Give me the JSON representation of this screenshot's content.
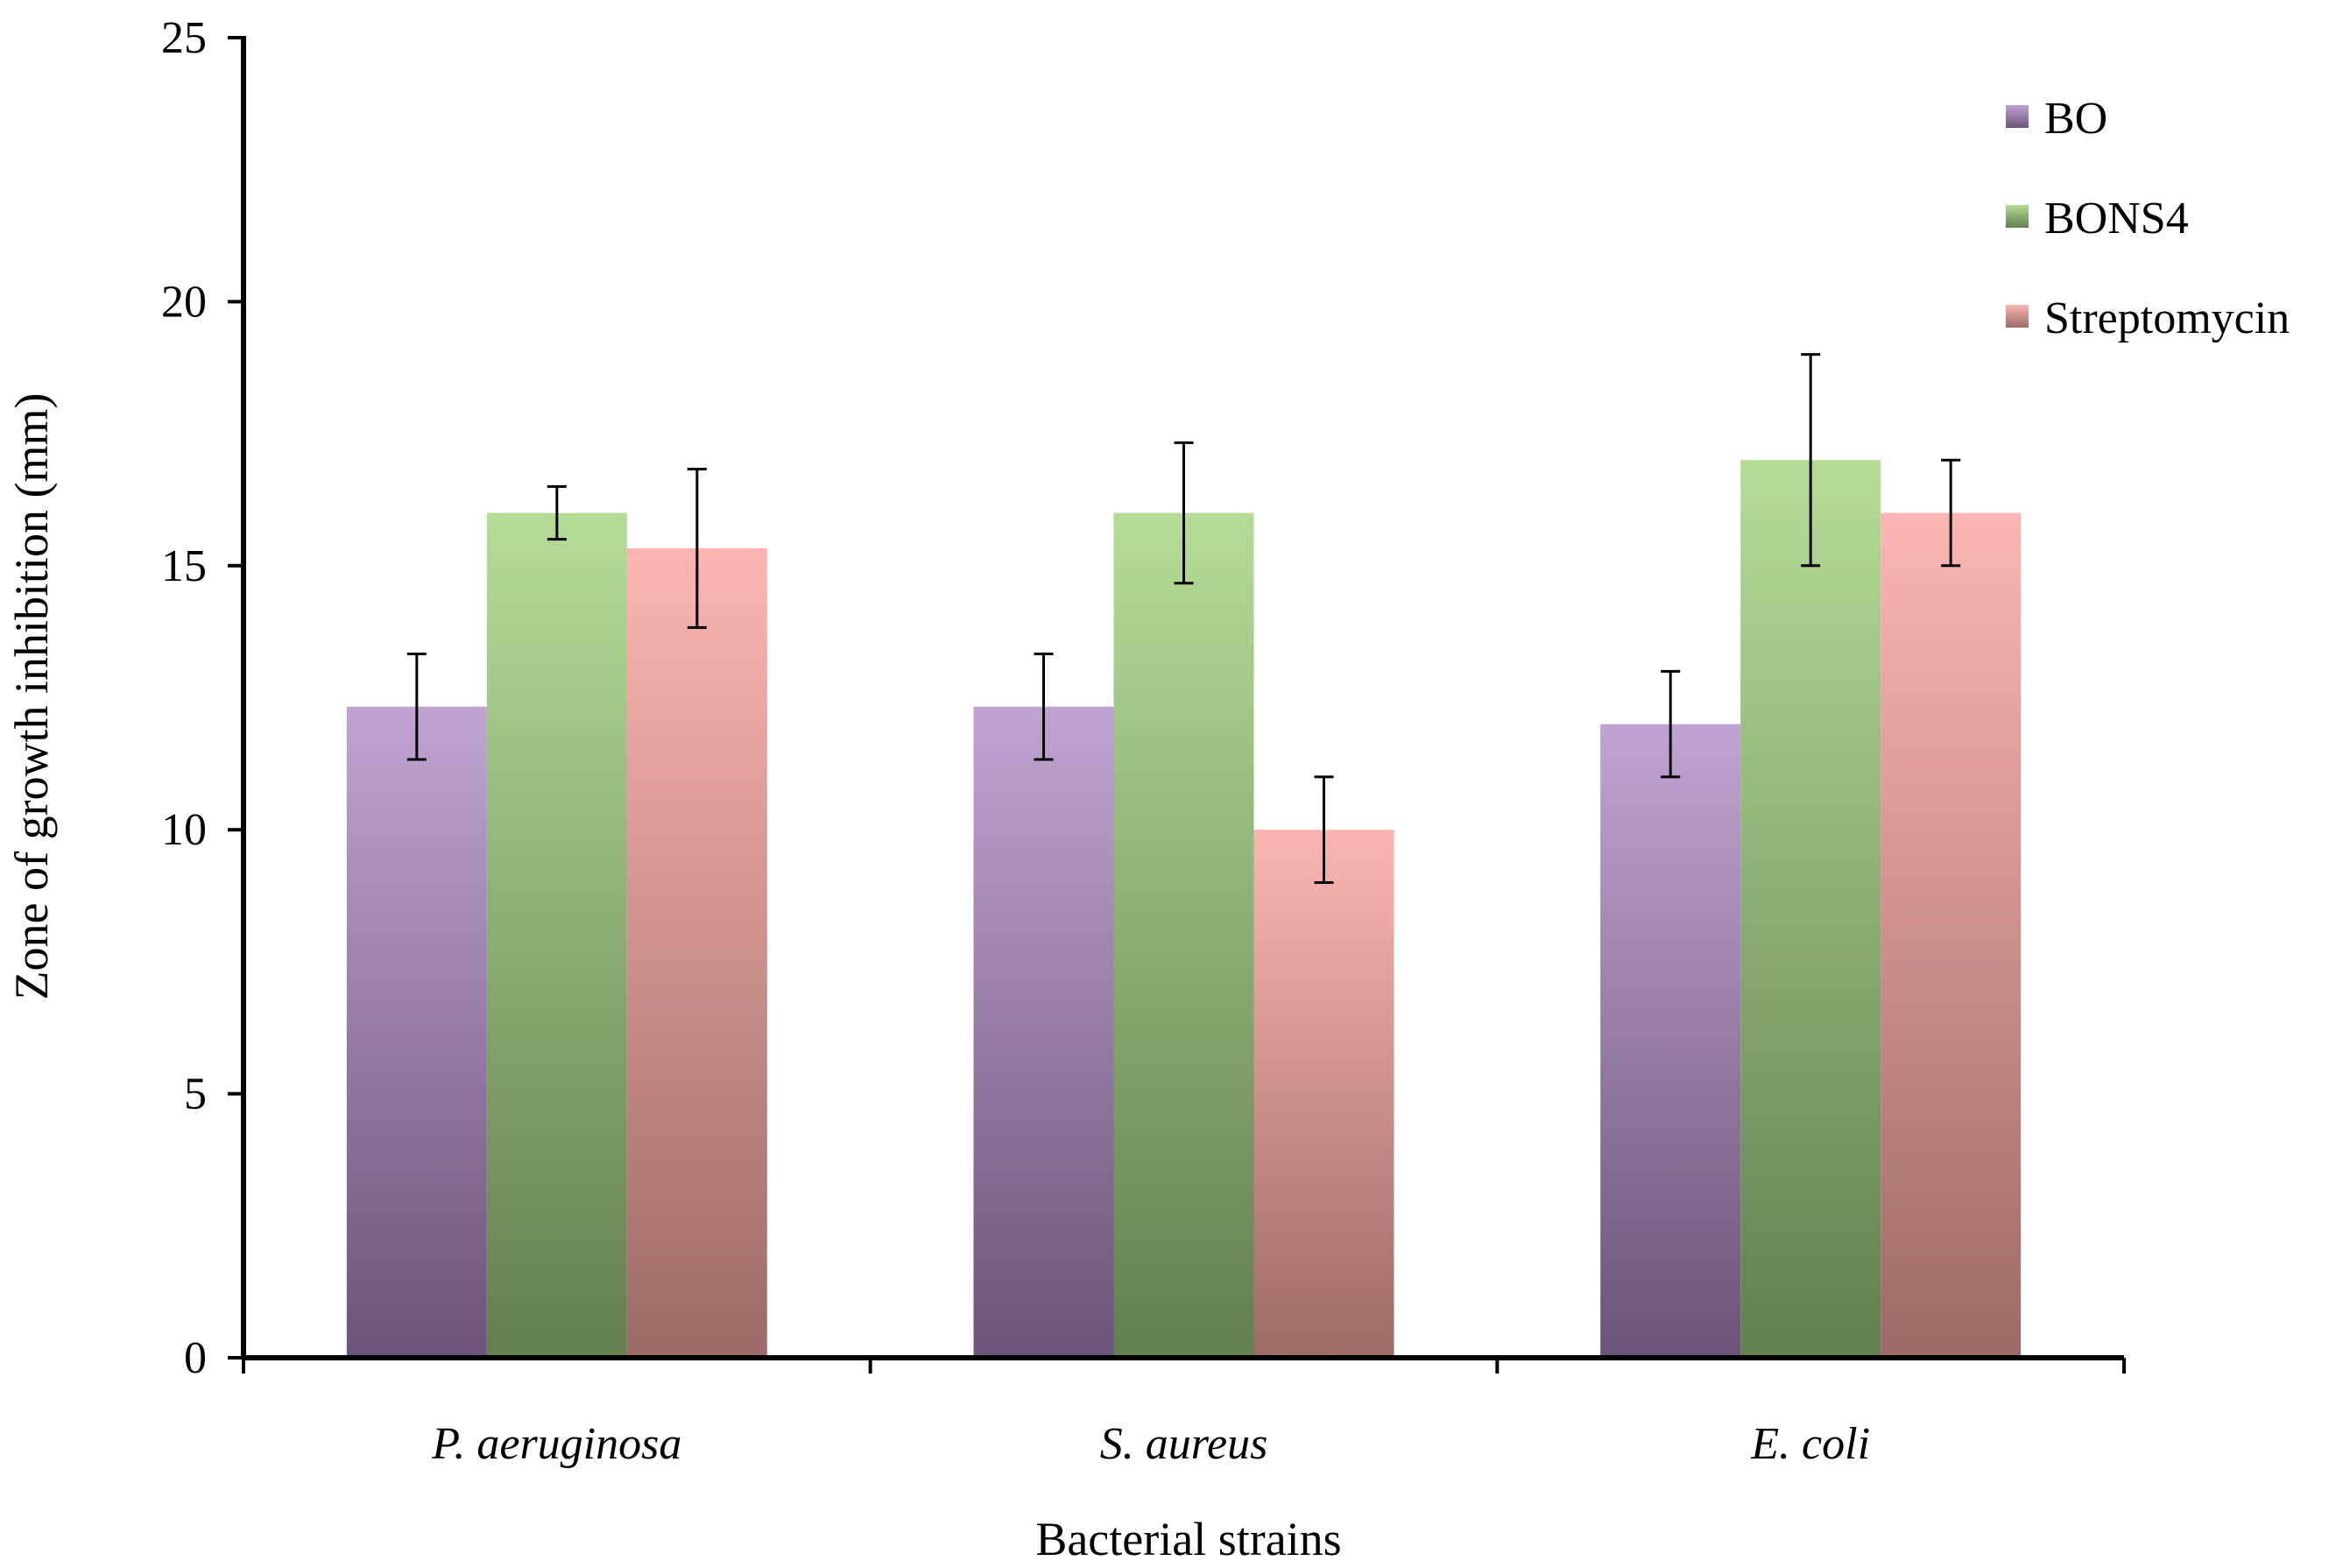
{
  "chart_data": {
    "type": "bar",
    "title": "",
    "xlabel": "Bacterial strains",
    "ylabel": "Zone of growth inhibition (mm)",
    "ylim": [
      0,
      25
    ],
    "yticks": [
      0,
      5,
      10,
      15,
      20,
      25
    ],
    "categories": [
      "P. aeruginosa",
      "S. aureus",
      "E. coli"
    ],
    "series": [
      {
        "name": "BO",
        "values": [
          12.33,
          12.33,
          12
        ],
        "errors": [
          1,
          1,
          1
        ],
        "color_top": "#c0a3d2",
        "color_bottom": "#6a5479"
      },
      {
        "name": "BONS4",
        "values": [
          16,
          16,
          17
        ],
        "errors": [
          0.5,
          1.33,
          2
        ],
        "color_top": "#b5dc97",
        "color_bottom": "#637e4f"
      },
      {
        "name": "Streptomycin",
        "values": [
          15.33,
          10,
          16
        ],
        "errors": [
          1.5,
          1,
          1
        ],
        "color_top": "#fcb5b2",
        "color_bottom": "#9c6a67"
      }
    ],
    "grid": false,
    "legend_position": "top-right"
  }
}
